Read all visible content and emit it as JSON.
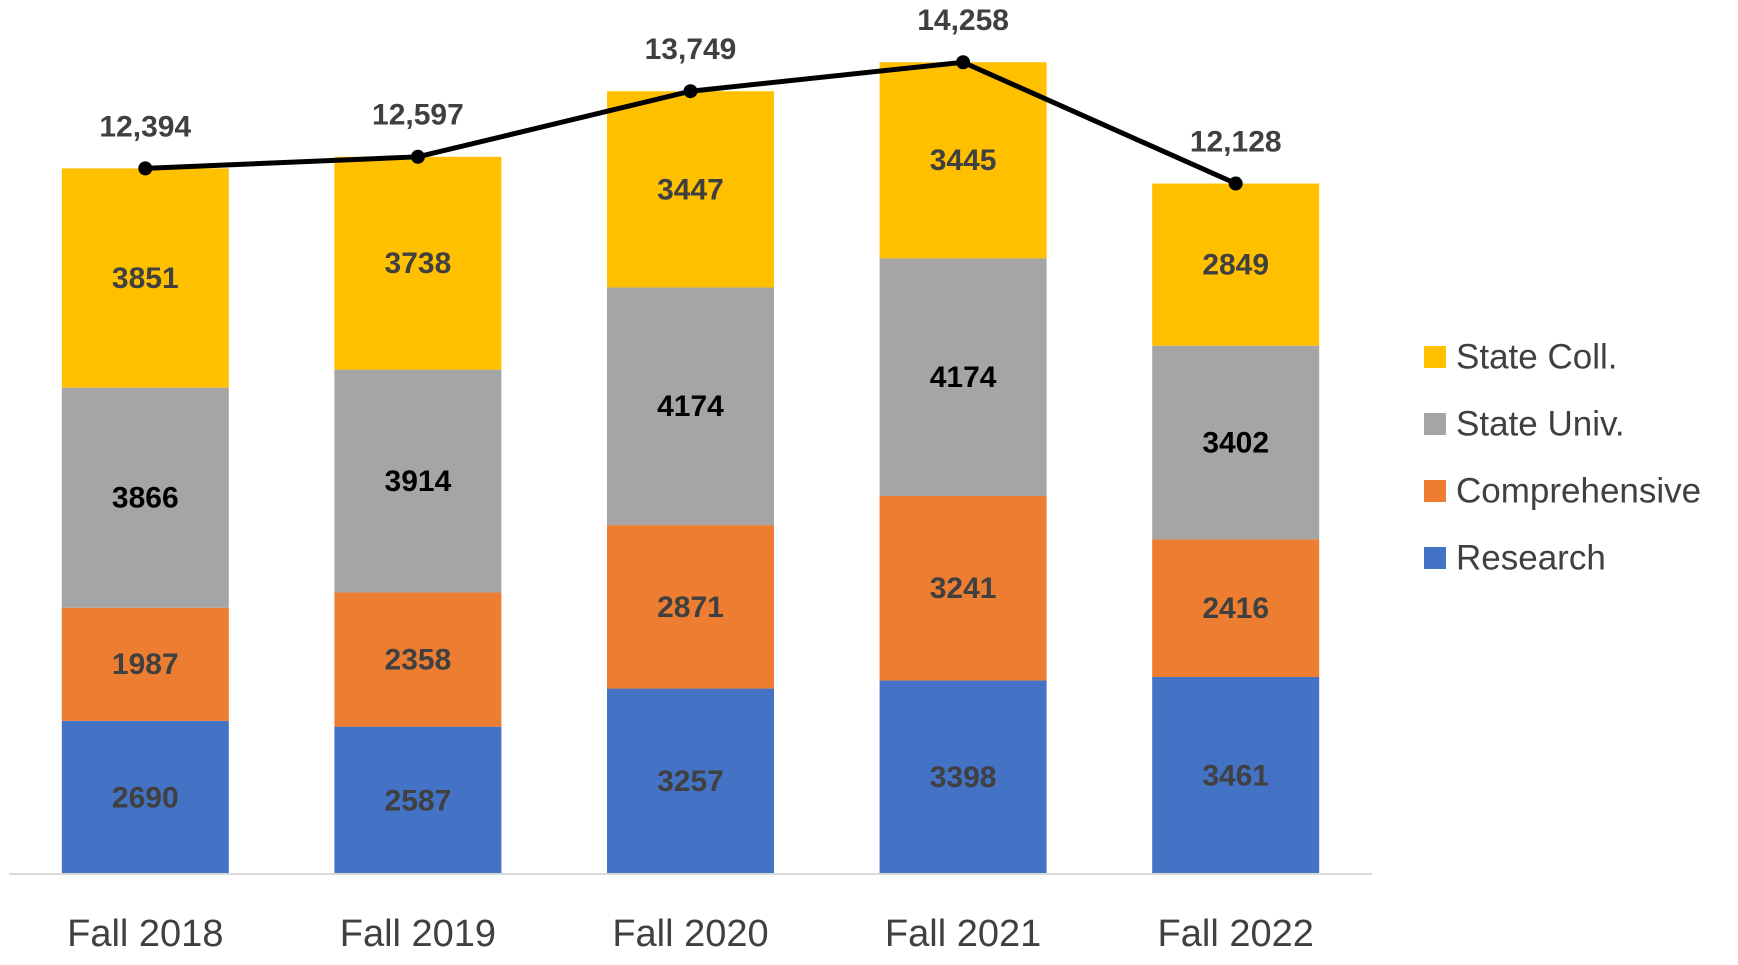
{
  "chart_data": {
    "type": "bar",
    "stacked": true,
    "categories": [
      "Fall 2018",
      "Fall 2019",
      "Fall 2020",
      "Fall 2021",
      "Fall 2022"
    ],
    "series": [
      {
        "name": "Research",
        "color": "#4472c4",
        "values": [
          2690,
          2587,
          3257,
          3398,
          3461
        ]
      },
      {
        "name": "Comprehensive",
        "color": "#ed7d31",
        "values": [
          1987,
          2358,
          2871,
          3241,
          2416
        ]
      },
      {
        "name": "State Univ.",
        "color": "#a5a5a5",
        "values": [
          3866,
          3914,
          4174,
          4174,
          3402
        ]
      },
      {
        "name": "State Coll.",
        "color": "#ffc000",
        "values": [
          3851,
          3738,
          3447,
          3445,
          2849
        ]
      }
    ],
    "total_line": {
      "type": "line",
      "color": "#000000",
      "values": [
        12394,
        12597,
        13749,
        14258,
        12128
      ],
      "value_labels": [
        "12,394",
        "12,597",
        "13,749",
        "14,258",
        "12,128"
      ]
    },
    "ylim": [
      0,
      15000
    ],
    "legend": "right"
  }
}
